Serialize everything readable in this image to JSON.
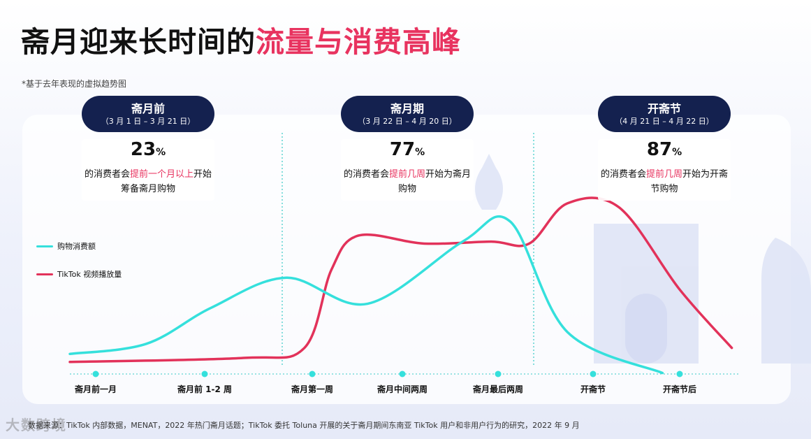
{
  "title": {
    "main": "斋月迎来长时间的",
    "accent": "流量与消费高峰"
  },
  "note": "*基于去年表现的虚拟趋势图",
  "phases": [
    {
      "name": "斋月前",
      "dates": "（3 月 1 日 – 3 月 21 日）",
      "pct": "23",
      "pct_sign": "%",
      "desc_pre": "的消费者会",
      "desc_hl": "提前一个月以上",
      "desc_post": "开始筹备斋月购物"
    },
    {
      "name": "斋月期",
      "dates": "（3 月 22 日 – 4 月 20 日）",
      "pct": "77",
      "pct_sign": "%",
      "desc_pre": "的消费者会",
      "desc_hl": "提前几周",
      "desc_post": "开始为斋月购物"
    },
    {
      "name": "开斋节",
      "dates": "（4 月 21 日 – 4 月 22 日）",
      "pct": "87",
      "pct_sign": "%",
      "desc_pre": "的消费者会",
      "desc_hl": "提前几周",
      "desc_post": "开始为开斋节购物"
    }
  ],
  "chart_data": {
    "type": "line",
    "categories": [
      "斋月前一月",
      "斋月前 1-2 周",
      "斋月第一周",
      "斋月中间两周",
      "斋月最后两周",
      "开斋节",
      "开斋节后"
    ],
    "series": [
      {
        "name": "购物消费额",
        "color": "#35e0dc",
        "points": [
          [
            0,
            1
          ],
          [
            0.7,
            1.5
          ],
          [
            1.3,
            3.3
          ],
          [
            2,
            4.8
          ],
          [
            2.9,
            3.5
          ],
          [
            3.9,
            6.6
          ],
          [
            4.4,
            7.6
          ],
          [
            5,
            2.1
          ],
          [
            6.1,
            0.05
          ]
        ]
      },
      {
        "name": "TikTok 视频播放量",
        "color": "#e2325a",
        "points": [
          [
            0,
            0.6
          ],
          [
            1.6,
            0.8
          ],
          [
            2.2,
            1.3
          ],
          [
            2.5,
            5.2
          ],
          [
            2.8,
            6.9
          ],
          [
            3.5,
            6.5
          ],
          [
            4.2,
            6.6
          ],
          [
            4.6,
            6.5
          ],
          [
            5,
            8.5
          ],
          [
            5.6,
            8.3
          ],
          [
            6.3,
            4.2
          ],
          [
            6.9,
            1.3
          ]
        ]
      }
    ],
    "ylim": [
      0,
      10
    ],
    "xlabel": "",
    "ylabel": "",
    "note": "虚拟趋势图，无数值刻度",
    "legend_position": "left"
  },
  "source": "数据来源：TikTok 内部数据，MENAT，2022 年热门斋月话题；TikTok 委托 Toluna 开展的关于斋月期间东南亚 TikTok 用户和非用户行为的研究，2022 年 9 月",
  "watermark": "大数跨境"
}
